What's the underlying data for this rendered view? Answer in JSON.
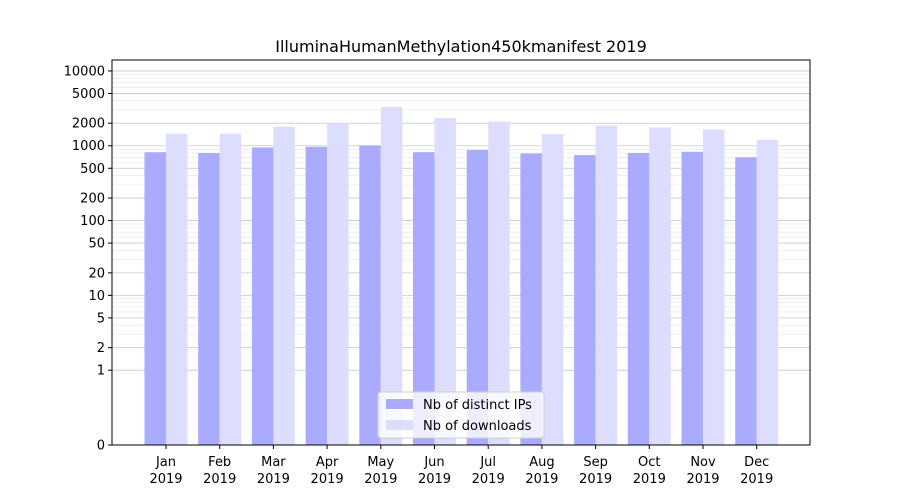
{
  "chart_data": {
    "type": "bar",
    "title": "IlluminaHumanMethylation450kmanifest 2019",
    "categories": [
      "Jan\n2019",
      "Feb\n2019",
      "Mar\n2019",
      "Apr\n2019",
      "May\n2019",
      "Jun\n2019",
      "Jul\n2019",
      "Aug\n2019",
      "Sep\n2019",
      "Oct\n2019",
      "Nov\n2019",
      "Dec\n2019"
    ],
    "series": [
      {
        "name": "Nb of distinct IPs",
        "color": "#aaaaff",
        "values": [
          820,
          800,
          950,
          970,
          1010,
          820,
          880,
          790,
          750,
          800,
          830,
          700
        ]
      },
      {
        "name": "Nb of downloads",
        "color": "#ddddff",
        "values": [
          1450,
          1450,
          1800,
          2000,
          3300,
          2350,
          2100,
          1430,
          1850,
          1750,
          1650,
          1200
        ]
      }
    ],
    "yscale": "symlog",
    "ylim": [
      0,
      14000
    ],
    "yticks": [
      0,
      1,
      2,
      5,
      10,
      20,
      50,
      100,
      200,
      500,
      1000,
      2000,
      5000,
      10000
    ],
    "xlabel": "",
    "ylabel": "",
    "grid": true,
    "legend_position": "lower-center"
  }
}
